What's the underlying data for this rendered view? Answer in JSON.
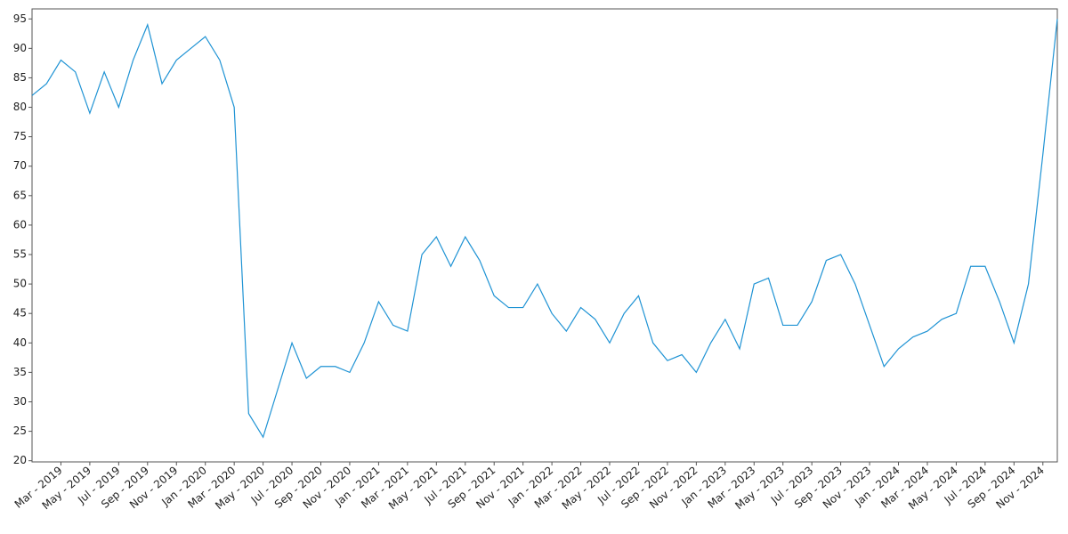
{
  "chart_data": {
    "type": "line",
    "x": [
      "2019-01",
      "2019-02",
      "2019-03",
      "2019-04",
      "2019-05",
      "2019-06",
      "2019-07",
      "2019-08",
      "2019-09",
      "2019-10",
      "2019-11",
      "2019-12",
      "2020-01",
      "2020-02",
      "2020-03",
      "2020-04",
      "2020-05",
      "2020-06",
      "2020-07",
      "2020-08",
      "2020-09",
      "2020-10",
      "2020-11",
      "2020-12",
      "2021-01",
      "2021-02",
      "2021-03",
      "2021-04",
      "2021-05",
      "2021-06",
      "2021-07",
      "2021-08",
      "2021-09",
      "2021-10",
      "2021-11",
      "2021-12",
      "2022-01",
      "2022-02",
      "2022-03",
      "2022-04",
      "2022-05",
      "2022-06",
      "2022-07",
      "2022-08",
      "2022-09",
      "2022-10",
      "2022-11",
      "2022-12",
      "2023-01",
      "2023-02",
      "2023-03",
      "2023-04",
      "2023-05",
      "2023-06",
      "2023-07",
      "2023-08",
      "2023-09",
      "2023-10",
      "2023-11",
      "2023-12",
      "2024-01",
      "2024-02",
      "2024-03",
      "2024-04",
      "2024-05",
      "2024-06",
      "2024-07",
      "2024-08",
      "2024-09",
      "2024-10",
      "2024-11",
      "2024-12"
    ],
    "series": [
      {
        "color": "#1f93d4",
        "values": [
          82,
          84,
          88,
          86,
          79,
          86,
          80,
          88,
          94,
          84,
          88,
          90,
          92,
          88,
          80,
          28,
          24,
          32,
          40,
          34,
          36,
          36,
          35,
          40,
          47,
          43,
          42,
          55,
          58,
          53,
          58,
          54,
          48,
          46,
          46,
          50,
          45,
          42,
          46,
          44,
          40,
          45,
          48,
          40,
          37,
          38,
          35,
          40,
          44,
          39,
          50,
          51,
          43,
          43,
          47,
          54,
          55,
          50,
          43,
          36,
          39,
          41,
          42,
          44,
          45,
          53,
          53,
          47,
          40,
          50,
          72,
          95
        ]
      }
    ],
    "xlim": [
      "2019-01",
      "2024-12"
    ],
    "xticks": [
      {
        "value": "2019-03",
        "label": "Mar - 2019"
      },
      {
        "value": "2019-05",
        "label": "May - 2019"
      },
      {
        "value": "2019-07",
        "label": "Jul - 2019"
      },
      {
        "value": "2019-09",
        "label": "Sep - 2019"
      },
      {
        "value": "2019-11",
        "label": "Nov - 2019"
      },
      {
        "value": "2020-01",
        "label": "Jan - 2020"
      },
      {
        "value": "2020-03",
        "label": "Mar - 2020"
      },
      {
        "value": "2020-05",
        "label": "May - 2020"
      },
      {
        "value": "2020-07",
        "label": "Jul - 2020"
      },
      {
        "value": "2020-09",
        "label": "Sep - 2020"
      },
      {
        "value": "2020-11",
        "label": "Nov - 2020"
      },
      {
        "value": "2021-01",
        "label": "Jan - 2021"
      },
      {
        "value": "2021-03",
        "label": "Mar - 2021"
      },
      {
        "value": "2021-05",
        "label": "May - 2021"
      },
      {
        "value": "2021-07",
        "label": "Jul - 2021"
      },
      {
        "value": "2021-09",
        "label": "Sep - 2021"
      },
      {
        "value": "2021-11",
        "label": "Nov - 2021"
      },
      {
        "value": "2022-01",
        "label": "Jan - 2022"
      },
      {
        "value": "2022-03",
        "label": "Mar - 2022"
      },
      {
        "value": "2022-05",
        "label": "May - 2022"
      },
      {
        "value": "2022-07",
        "label": "Jul - 2022"
      },
      {
        "value": "2022-09",
        "label": "Sep - 2022"
      },
      {
        "value": "2022-11",
        "label": "Nov - 2022"
      },
      {
        "value": "2023-01",
        "label": "Jan - 2023"
      },
      {
        "value": "2023-03",
        "label": "Mar - 2023"
      },
      {
        "value": "2023-05",
        "label": "May - 2023"
      },
      {
        "value": "2023-07",
        "label": "Jul - 2023"
      },
      {
        "value": "2023-09",
        "label": "Sep - 2023"
      },
      {
        "value": "2023-11",
        "label": "Nov - 2023"
      },
      {
        "value": "2024-01",
        "label": "Jan - 2024"
      },
      {
        "value": "2024-03",
        "label": "Mar - 2024"
      },
      {
        "value": "2024-05",
        "label": "May - 2024"
      },
      {
        "value": "2024-07",
        "label": "Jul - 2024"
      },
      {
        "value": "2024-09",
        "label": "Sep - 2024"
      },
      {
        "value": "2024-11",
        "label": "Nov - 2024"
      }
    ],
    "ylim": [
      19.8,
      96.7
    ],
    "yticks": [
      20,
      25,
      30,
      35,
      40,
      45,
      50,
      55,
      60,
      65,
      70,
      75,
      80,
      85,
      90,
      95
    ]
  }
}
